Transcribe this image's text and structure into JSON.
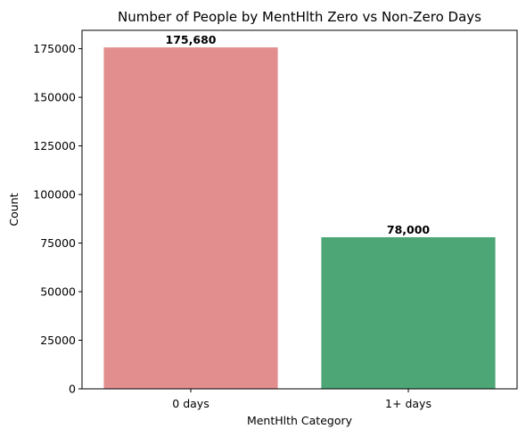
{
  "chart_data": {
    "type": "bar",
    "title": "Number of People by MentHlth Zero vs Non-Zero Days",
    "xlabel": "MentHlth Category",
    "ylabel": "Count",
    "categories": [
      "0 days",
      "1+ days"
    ],
    "values": [
      175680,
      78000
    ],
    "data_labels": [
      "175,680",
      "78,000"
    ],
    "colors": [
      "#e28e8f",
      "#4da676"
    ],
    "ylim": [
      0,
      184464
    ],
    "yticks": [
      0,
      25000,
      50000,
      75000,
      100000,
      125000,
      150000,
      175000
    ],
    "grid": false,
    "legend": "none"
  }
}
